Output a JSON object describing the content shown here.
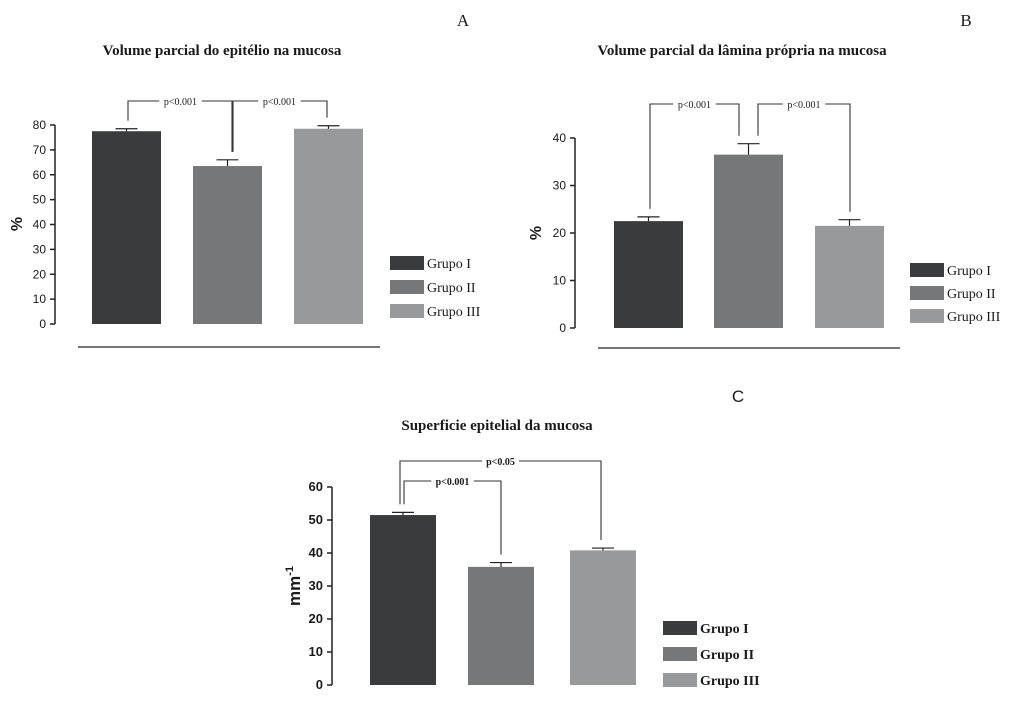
{
  "figure": {
    "background": "#ffffff",
    "colors": {
      "Grupo I": "#3a3b3d",
      "Grupo II": "#767779",
      "Grupo III": "#98999b"
    }
  },
  "chart_data": [
    {
      "panel": "A",
      "type": "bar",
      "title": "Volume parcial do epitélio na mucosa",
      "xlabel": "",
      "ylabel": "%",
      "categories": [
        "Grupo I",
        "Grupo II",
        "Grupo III"
      ],
      "values": [
        77.5,
        63.5,
        78.5
      ],
      "errors": [
        1.0,
        2.5,
        1.2
      ],
      "ylim": [
        0,
        80
      ],
      "yticks": [
        0,
        10,
        20,
        30,
        40,
        50,
        60,
        70,
        80
      ],
      "legend": [
        "Grupo I",
        "Grupo II",
        "Grupo III"
      ],
      "legend_position": "right",
      "annotations": [
        {
          "text": "p<0.001",
          "from": 0,
          "to": 1
        },
        {
          "text": "p<0.001",
          "from": 1,
          "to": 2
        }
      ],
      "grid": false
    },
    {
      "panel": "B",
      "type": "bar",
      "title": "Volume parcial da lâmina própria na mucosa",
      "xlabel": "",
      "ylabel": "%",
      "categories": [
        "Grupo I",
        "Grupo II",
        "Grupo III"
      ],
      "values": [
        22.5,
        36.5,
        21.5
      ],
      "errors": [
        0.9,
        2.3,
        1.3
      ],
      "ylim": [
        0,
        40
      ],
      "yticks": [
        0,
        10,
        20,
        30,
        40
      ],
      "legend": [
        "Grupo I",
        "Grupo II",
        "Grupo III"
      ],
      "legend_position": "right",
      "annotations": [
        {
          "text": "p<0.001",
          "from": 0,
          "to": 1
        },
        {
          "text": "p<0.001",
          "from": 1,
          "to": 2
        }
      ],
      "grid": false
    },
    {
      "panel": "C",
      "type": "bar",
      "title": "Superficie epitelial da mucosa",
      "xlabel": "",
      "ylabel": "mm-1",
      "categories": [
        "Grupo I",
        "Grupo II",
        "Grupo III"
      ],
      "values": [
        51.5,
        35.8,
        40.8
      ],
      "errors": [
        0.8,
        1.3,
        0.7
      ],
      "ylim": [
        0,
        60
      ],
      "yticks": [
        0,
        10,
        20,
        30,
        40,
        50,
        60
      ],
      "legend": [
        "Grupo I",
        "Grupo II",
        "Grupo III"
      ],
      "legend_position": "right",
      "annotations": [
        {
          "text": "p<0.001",
          "from": 0,
          "to": 1
        },
        {
          "text": "p<0.05",
          "from": 0,
          "to": 2
        }
      ],
      "grid": false
    }
  ]
}
